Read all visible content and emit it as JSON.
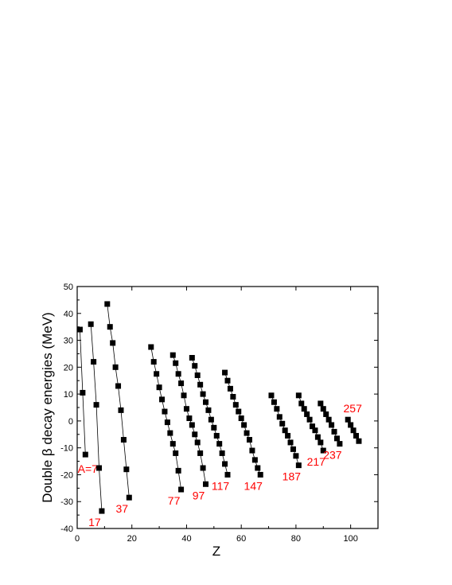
{
  "chart_data": {
    "type": "scatter",
    "title": "",
    "xlabel": "Z",
    "ylabel": "Double β decay energies (MeV)",
    "xlim": [
      0,
      110
    ],
    "ylim": [
      -40,
      50
    ],
    "xticks": [
      0,
      20,
      40,
      60,
      80,
      100
    ],
    "yticks": [
      -40,
      -30,
      -20,
      -10,
      0,
      10,
      20,
      30,
      40,
      50
    ],
    "grid": false,
    "legend": "none",
    "marker": "square",
    "marker_color": "#000000",
    "label_color": "#ff0000",
    "series": [
      {
        "label": "A=7",
        "x": [
          1,
          2,
          3
        ],
        "y": [
          34,
          10.5,
          -12.5
        ]
      },
      {
        "label": "17",
        "x": [
          5,
          6,
          7,
          8,
          9
        ],
        "y": [
          36,
          22,
          6,
          -17.5,
          -33.5
        ]
      },
      {
        "label": "37",
        "x": [
          11,
          12,
          13,
          14,
          15,
          16,
          17,
          18,
          19
        ],
        "y": [
          43.5,
          35,
          29,
          20,
          13,
          4,
          -7,
          -18,
          -28.5
        ]
      },
      {
        "label": "77",
        "x": [
          27,
          28,
          29,
          30,
          31,
          32,
          33,
          34,
          35,
          36,
          37,
          38
        ],
        "y": [
          27.5,
          22,
          17.5,
          12.5,
          8,
          3.5,
          -0.5,
          -4.5,
          -8.5,
          -12,
          -18.5,
          -25.5
        ]
      },
      {
        "label": "97",
        "x": [
          35,
          36,
          37,
          38,
          39,
          40,
          41,
          42,
          43,
          44,
          45,
          46,
          47
        ],
        "y": [
          24.5,
          21.5,
          17.5,
          14,
          9.5,
          4.5,
          1,
          -1.5,
          -5,
          -8,
          -12,
          -17.5,
          -23.5
        ]
      },
      {
        "label": "117",
        "x": [
          42,
          43,
          44,
          45,
          46,
          47,
          48,
          49,
          50,
          51,
          52,
          53,
          54,
          55
        ],
        "y": [
          23.5,
          20.5,
          17,
          13.5,
          10,
          7,
          4,
          0.5,
          -2.5,
          -5.5,
          -8.5,
          -12,
          -16,
          -20
        ]
      },
      {
        "label": "147",
        "x": [
          54,
          55,
          56,
          57,
          58,
          59,
          60,
          61,
          62,
          63,
          64,
          65,
          66,
          67
        ],
        "y": [
          18,
          15,
          12,
          9,
          6,
          3.5,
          1,
          -1.5,
          -4.5,
          -7,
          -11,
          -14.5,
          -17.5,
          -20
        ]
      },
      {
        "label": "187",
        "x": [
          71,
          72,
          73,
          74,
          75,
          76,
          77,
          78,
          79,
          80,
          81
        ],
        "y": [
          9.5,
          7,
          4.5,
          1.5,
          -1,
          -3.5,
          -5.5,
          -8,
          -10.5,
          -13,
          -16.5
        ]
      },
      {
        "label": "217",
        "x": [
          81,
          82,
          83,
          84,
          85,
          86,
          87,
          88,
          89,
          90
        ],
        "y": [
          9.5,
          6.5,
          4.5,
          2.5,
          0.5,
          -2,
          -3.5,
          -6,
          -8,
          -11
        ]
      },
      {
        "label": "237",
        "x": [
          89,
          90,
          91,
          92,
          93,
          94,
          95,
          96
        ],
        "y": [
          6.5,
          4.5,
          2.5,
          0.5,
          -1.5,
          -4,
          -6.5,
          -8.5
        ]
      },
      {
        "label": "257",
        "x": [
          99,
          100,
          101,
          102,
          103
        ],
        "y": [
          0.5,
          -1.5,
          -3.5,
          -5.5,
          -7.5
        ]
      }
    ]
  }
}
